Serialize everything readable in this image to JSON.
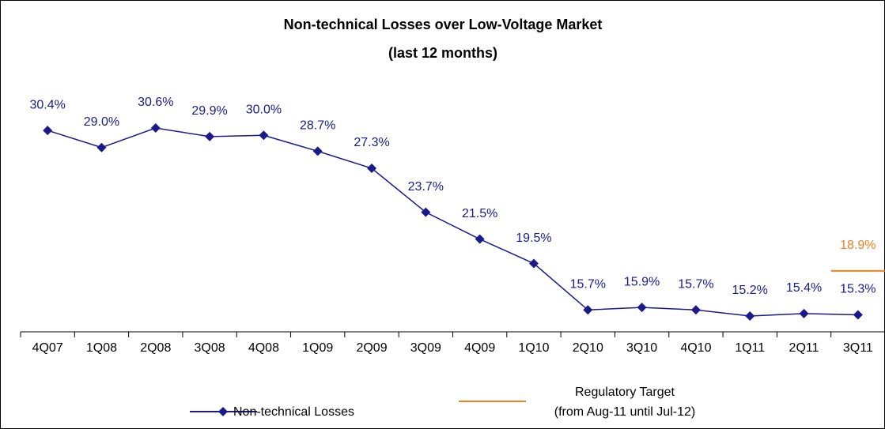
{
  "chart_data": {
    "type": "line",
    "title": "Non-technical Losses over Low-Voltage Market",
    "subtitle": "(last 12 months)",
    "categories": [
      "4Q07",
      "1Q08",
      "2Q08",
      "3Q08",
      "4Q08",
      "1Q09",
      "2Q09",
      "3Q09",
      "4Q09",
      "1Q10",
      "2Q10",
      "3Q10",
      "4Q10",
      "1Q11",
      "2Q11",
      "3Q11"
    ],
    "series": [
      {
        "name": "Non-technical Losses",
        "color": "#1a1a8c",
        "values": [
          30.4,
          29.0,
          30.6,
          29.9,
          30.0,
          28.7,
          27.3,
          23.7,
          21.5,
          19.5,
          15.7,
          15.9,
          15.7,
          15.2,
          15.4,
          15.3
        ],
        "value_labels": [
          "30.4%",
          "29.0%",
          "30.6%",
          "29.9%",
          "30.0%",
          "28.7%",
          "27.3%",
          "23.7%",
          "21.5%",
          "19.5%",
          "15.7%",
          "15.9%",
          "15.7%",
          "15.2%",
          "15.4%",
          "15.3%"
        ]
      },
      {
        "name": "Regulatory Target\n(from Aug-11 until Jul-12)",
        "color": "#f07f1e",
        "values": [
          null,
          null,
          null,
          null,
          null,
          null,
          null,
          null,
          null,
          null,
          null,
          null,
          null,
          null,
          null,
          18.9
        ],
        "value_labels": [
          null,
          null,
          null,
          null,
          null,
          null,
          null,
          null,
          null,
          null,
          null,
          null,
          null,
          null,
          null,
          "18.9%"
        ]
      }
    ]
  }
}
